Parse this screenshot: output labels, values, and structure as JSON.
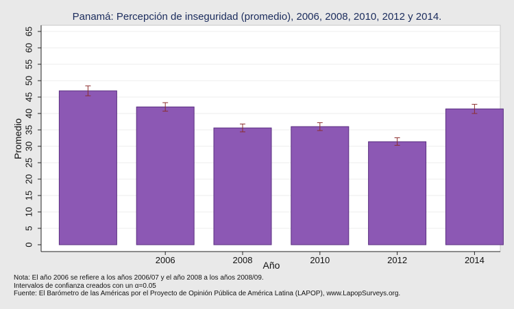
{
  "chart_data": {
    "type": "bar",
    "title": "Panamá: Percepción de inseguridad (promedio), 2006, 2008, 2010, 2012 y 2014.",
    "xlabel": "Año",
    "ylabel": "Promedio",
    "categories": [
      "",
      "2006",
      "2008",
      "2010",
      "2012",
      "2014"
    ],
    "values": [
      46.9,
      42.0,
      35.6,
      36.0,
      31.4,
      41.4
    ],
    "ci_lower": [
      45.4,
      40.7,
      34.4,
      34.8,
      30.3,
      40.0
    ],
    "ci_upper": [
      48.4,
      43.3,
      36.8,
      37.2,
      32.6,
      42.8
    ],
    "ylim": [
      0,
      65
    ],
    "yticks": [
      0,
      5,
      10,
      15,
      20,
      25,
      30,
      35,
      40,
      45,
      50,
      55,
      60,
      65
    ],
    "grid": true,
    "bar_color": "#8c58b4",
    "error_bar_color": "#8b2d2d"
  },
  "notes": [
    "Nota: El año 2006 se refiere a los años 2006/07 y el año 2008 a los años 2008/09.",
    "Intervalos de confianza creados con un α=0.05",
    "Fuente: El Barómetro de las Américas por el Proyecto de Opinión Pública de América Latina (LAPOP), www.LapopSurveys.org."
  ]
}
